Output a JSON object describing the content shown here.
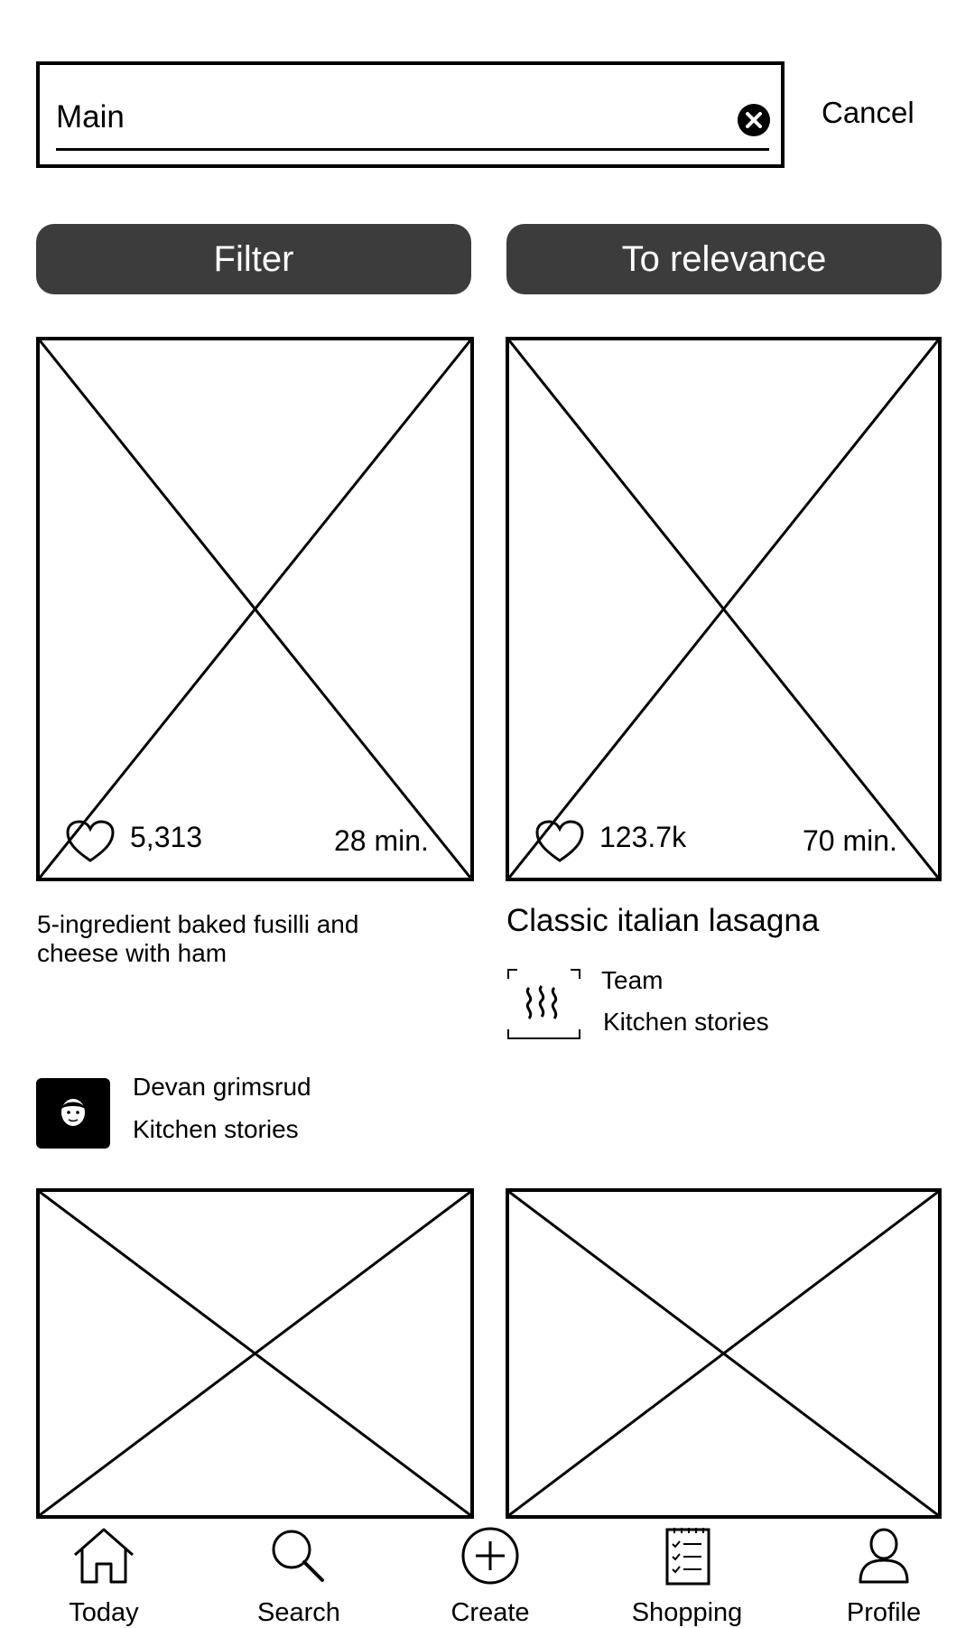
{
  "search": {
    "value": "Main",
    "cancel_label": "Cancel"
  },
  "buttons": {
    "filter": "Filter",
    "sort": "To relevance"
  },
  "cards": [
    {
      "likes": "5,313",
      "time": "28 min.",
      "title": "5-ingredient baked fusilli and cheese with ham",
      "author": "Devan grimsrud",
      "source": "Kitchen stories"
    },
    {
      "likes": "123.7k",
      "time": "70 min.",
      "title": "Classic italian lasagna",
      "author": "Team",
      "source": "Kitchen stories"
    }
  ],
  "nav": [
    {
      "label": "Today",
      "icon": "home-icon"
    },
    {
      "label": "Search",
      "icon": "search-icon"
    },
    {
      "label": "Create",
      "icon": "plus-circle-icon"
    },
    {
      "label": "Shopping",
      "icon": "checklist-icon"
    },
    {
      "label": "Profile",
      "icon": "person-icon"
    }
  ]
}
